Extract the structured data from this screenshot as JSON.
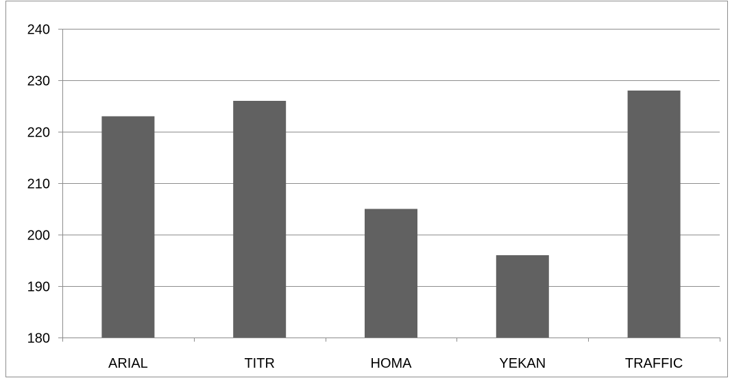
{
  "chart_data": {
    "type": "bar",
    "categories": [
      "ARIAL",
      "TITR",
      "HOMA",
      "YEKAN",
      "TRAFFIC"
    ],
    "values": [
      223,
      226,
      205,
      196,
      228
    ],
    "ylim": [
      180,
      240
    ],
    "yticks": [
      180,
      190,
      200,
      210,
      220,
      230,
      240
    ],
    "grid": true,
    "legend": "none",
    "colors": {
      "bar": "#616161",
      "grid": "#8c8c8c",
      "axis": "#8c8c8c",
      "frame": "#8c8c8c",
      "text": "#000000"
    }
  }
}
